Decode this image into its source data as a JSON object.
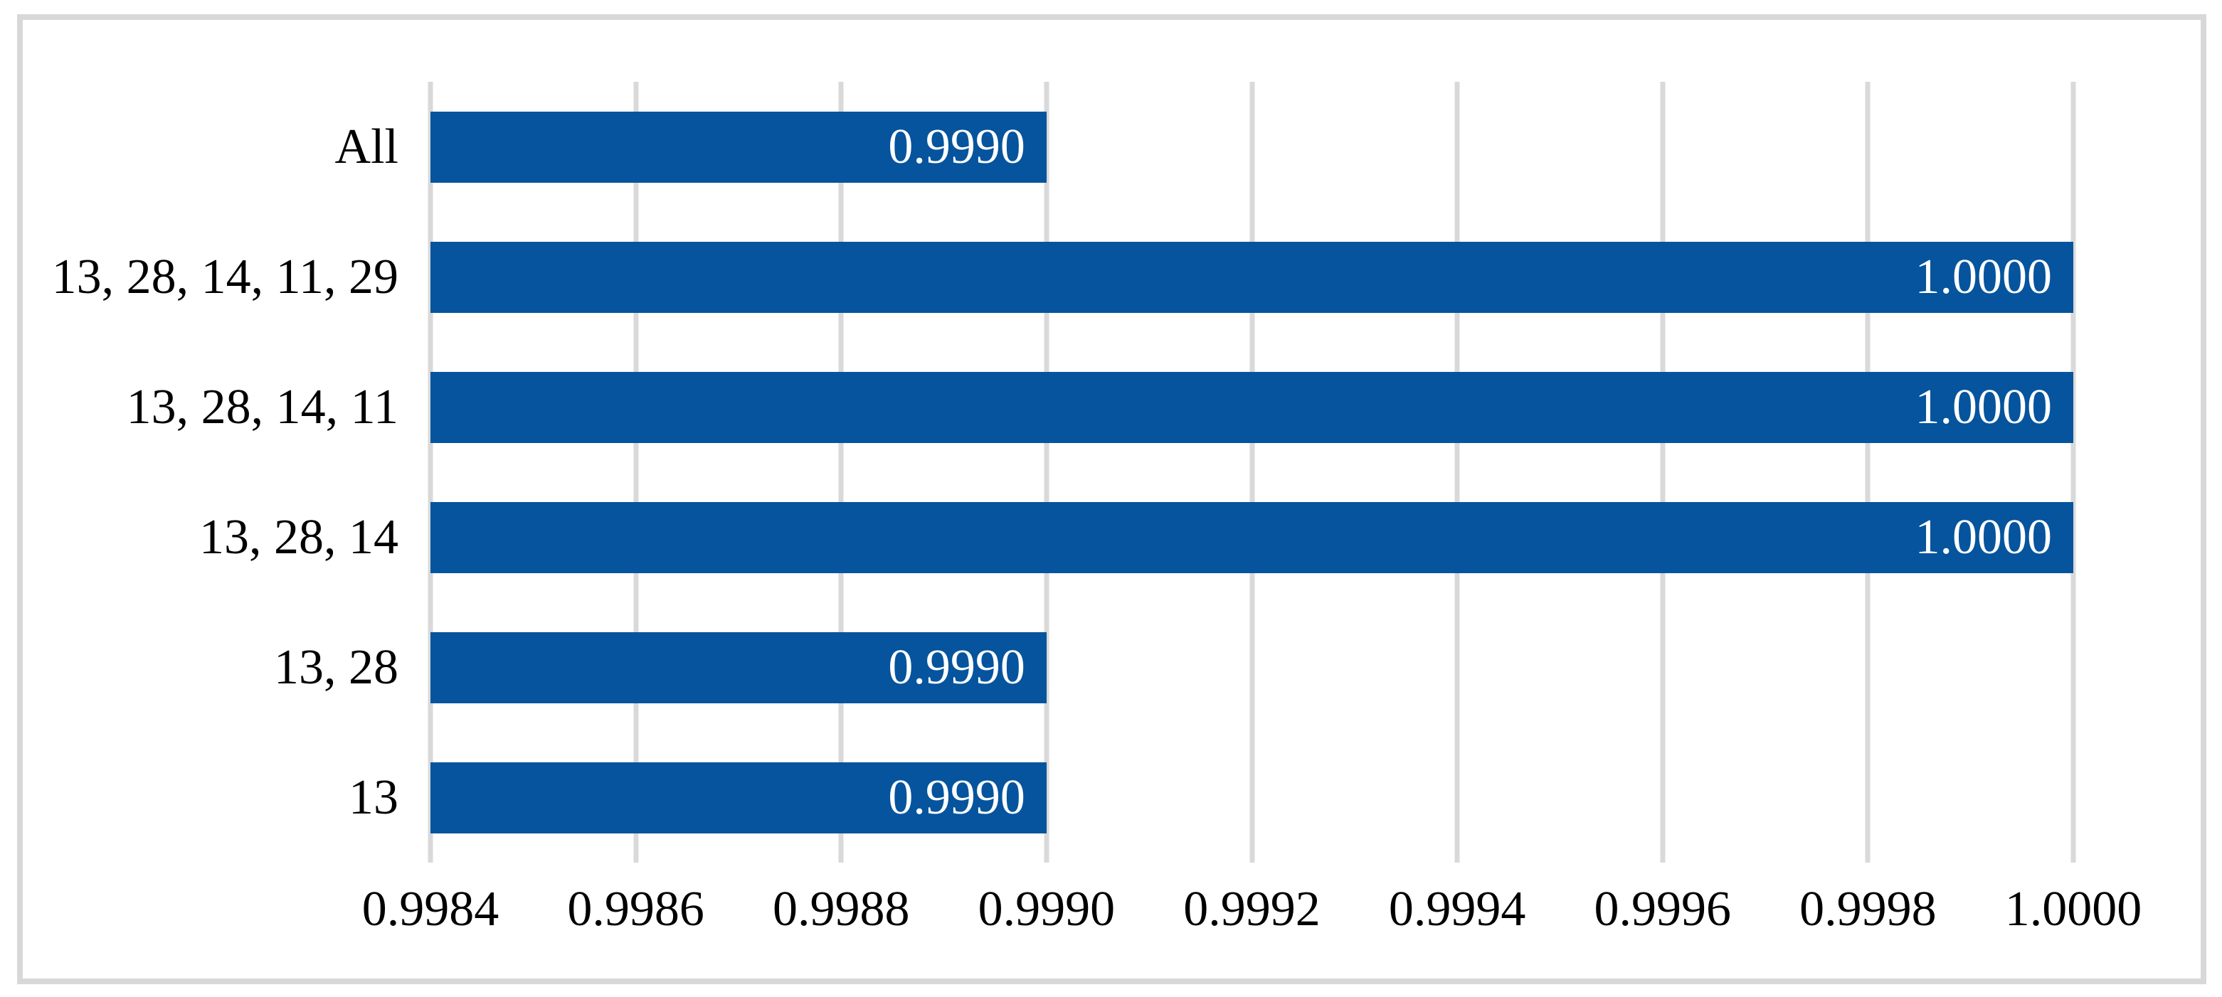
{
  "figure": {
    "background": "#ffffff",
    "border_color": "#d8d8d8"
  },
  "chart_data": {
    "type": "bar",
    "orientation": "horizontal",
    "title": "",
    "xlabel": "",
    "ylabel": "",
    "categories": [
      "All",
      "13, 28, 14, 11, 29",
      "13, 28, 14, 11",
      "13, 28, 14",
      "13, 28",
      "13"
    ],
    "values": [
      0.999,
      1.0,
      1.0,
      1.0,
      0.999,
      0.999
    ],
    "value_labels": [
      "0.9990",
      "1.0000",
      "1.0000",
      "1.0000",
      "0.9990",
      "0.9990"
    ],
    "xlim": [
      0.9984,
      1.0
    ],
    "x_ticks": [
      "0.9984",
      "0.9986",
      "0.9988",
      "0.9990",
      "0.9992",
      "0.9994",
      "0.9996",
      "0.9998",
      "1.0000"
    ],
    "grid": "vertical",
    "legend": "none",
    "bar_color": "#05549d",
    "gridline_color": "#d9d9d9",
    "value_label_color": "#ffffff",
    "axis_text_color": "#000000"
  }
}
